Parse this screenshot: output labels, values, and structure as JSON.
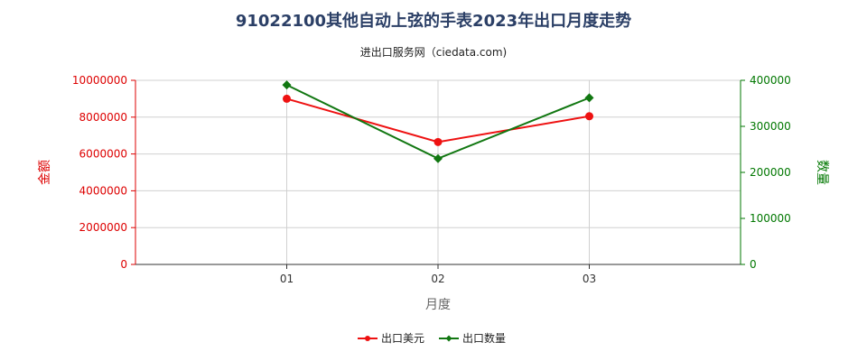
{
  "chart_data": {
    "type": "line",
    "title": "91022100其他自动上弦的手表2023年出口月度走势",
    "subtitle": "进出口服务网（ciedata.com)",
    "xlabel": "月度",
    "ylabel_left": "金额",
    "ylabel_right": "数量",
    "categories": [
      "01",
      "02",
      "03"
    ],
    "y_left": {
      "range": [
        0,
        10000000
      ],
      "ticks": [
        0,
        2000000,
        4000000,
        6000000,
        8000000,
        10000000
      ],
      "tick_labels": [
        "0",
        "2000000",
        "4000000",
        "6000000",
        "8000000",
        "10000000"
      ],
      "color": "#dd0000"
    },
    "y_right": {
      "range": [
        0,
        400000
      ],
      "ticks": [
        0,
        100000,
        200000,
        300000,
        400000
      ],
      "tick_labels": [
        "0",
        "100000",
        "200000",
        "300000",
        "400000"
      ],
      "color": "#007700"
    },
    "grid": true,
    "legend_position": "bottom-center",
    "series": [
      {
        "name": "出口美元",
        "axis": "left",
        "color": "#ee1111",
        "marker": "circle",
        "values": [
          9000000,
          6650000,
          8050000
        ]
      },
      {
        "name": "出口数量",
        "axis": "right",
        "color": "#117711",
        "marker": "diamond",
        "values": [
          390000,
          230000,
          362000
        ]
      }
    ]
  }
}
